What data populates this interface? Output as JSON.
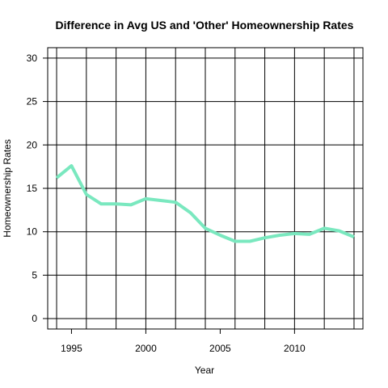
{
  "chart_data": {
    "type": "line",
    "title": "Difference in Avg US and 'Other' Homeownership Rates",
    "xlabel": "Year",
    "ylabel": "Homeownership Rates",
    "xlim": [
      1993.4,
      2014.6
    ],
    "ylim": [
      -1.2,
      31.2
    ],
    "x_ticks": [
      1995,
      2000,
      2005,
      2010
    ],
    "y_ticks": [
      0,
      5,
      10,
      15,
      20,
      25,
      30
    ],
    "grid": true,
    "series": [
      {
        "color": "#7ae8bf",
        "x": [
          1994,
          1995,
          1996,
          1997,
          1998,
          1999,
          2000,
          2001,
          2002,
          2003,
          2004,
          2005,
          2006,
          2007,
          2008,
          2009,
          2010,
          2011,
          2012,
          2013,
          2014
        ],
        "values": [
          16.2,
          17.6,
          14.3,
          13.2,
          13.2,
          13.1,
          13.8,
          13.6,
          13.4,
          12.2,
          10.4,
          9.6,
          8.9,
          8.9,
          9.3,
          9.6,
          9.8,
          9.7,
          10.4,
          10.1,
          9.4
        ]
      }
    ]
  }
}
